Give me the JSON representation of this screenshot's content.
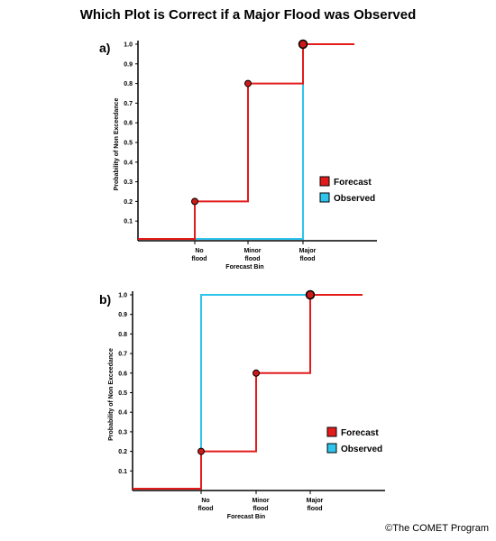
{
  "title": "Which Plot is Correct if a Major Flood was Observed",
  "credit": "©The COMET Program",
  "colors": {
    "forecast": "#e31b1b",
    "observed": "#2ec4ec",
    "marker": "#cc1a1a"
  },
  "chart_data": [
    {
      "type": "line",
      "panel_label": "a)",
      "categories": [
        [
          "No",
          "flood"
        ],
        [
          "Minor",
          "flood"
        ],
        [
          "Major",
          "flood"
        ]
      ],
      "xlabel": "Forecast Bin",
      "ylabel": "Probability of Non Exceedance",
      "ylim": [
        0,
        1.0
      ],
      "yticks": [
        "0.1",
        "0.2",
        "0.3",
        "0.4",
        "0.5",
        "0.6",
        "0.7",
        "0.8",
        "0.9",
        "1.0"
      ],
      "legend_position": "right",
      "series": [
        {
          "name": "Forecast",
          "values": [
            0.2,
            0.8,
            1.0
          ]
        },
        {
          "name": "Observed",
          "values": [
            0,
            0,
            1.0
          ]
        }
      ]
    },
    {
      "type": "line",
      "panel_label": "b)",
      "categories": [
        [
          "No",
          "flood"
        ],
        [
          "Minor",
          "flood"
        ],
        [
          "Major",
          "flood"
        ]
      ],
      "xlabel": "Forecast Bin",
      "ylabel": "Probability of Non Exceedance",
      "ylim": [
        0,
        1.0
      ],
      "yticks": [
        "0.1",
        "0.2",
        "0.3",
        "0.4",
        "0.5",
        "0.6",
        "0.7",
        "0.8",
        "0.9",
        "1.0"
      ],
      "legend_position": "right",
      "series": [
        {
          "name": "Forecast",
          "values": [
            0.2,
            0.6,
            1.0
          ]
        },
        {
          "name": "Observed",
          "values": [
            1.0,
            1.0,
            1.0
          ]
        }
      ]
    }
  ]
}
